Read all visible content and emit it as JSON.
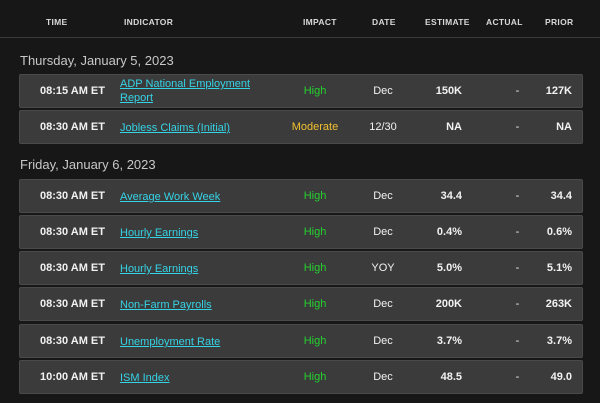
{
  "header": {
    "time": "TIME",
    "indicator": "INDICATOR",
    "impact": "IMPACT",
    "date": "DATE",
    "estimate": "ESTIMATE",
    "actual": "ACTUAL",
    "prior": "PRIOR"
  },
  "colors": {
    "high": "#25d12f",
    "moderate": "#f0c030",
    "link": "#35d3e6"
  },
  "days": [
    {
      "label": "Thursday, January 5, 2023",
      "rows": [
        {
          "time": "08:15 AM ET",
          "indicator": "ADP National Employment Report",
          "impact": "High",
          "date": "Dec",
          "estimate": "150K",
          "actual": "-",
          "prior": "127K"
        },
        {
          "time": "08:30 AM ET",
          "indicator": "Jobless Claims (Initial)",
          "impact": "Moderate",
          "date": "12/30",
          "estimate": "NA",
          "actual": "-",
          "prior": "NA"
        }
      ]
    },
    {
      "label": "Friday, January 6, 2023",
      "rows": [
        {
          "time": "08:30 AM ET",
          "indicator": "Average Work Week",
          "impact": "High",
          "date": "Dec",
          "estimate": "34.4",
          "actual": "-",
          "prior": "34.4"
        },
        {
          "time": "08:30 AM ET",
          "indicator": "Hourly Earnings",
          "impact": "High",
          "date": "Dec",
          "estimate": "0.4%",
          "actual": "-",
          "prior": "0.6%"
        },
        {
          "time": "08:30 AM ET",
          "indicator": "Hourly Earnings",
          "impact": "High",
          "date": "YOY",
          "estimate": "5.0%",
          "actual": "-",
          "prior": "5.1%"
        },
        {
          "time": "08:30 AM ET",
          "indicator": "Non-Farm Payrolls",
          "impact": "High",
          "date": "Dec",
          "estimate": "200K",
          "actual": "-",
          "prior": "263K"
        },
        {
          "time": "08:30 AM ET",
          "indicator": "Unemployment Rate",
          "impact": "High",
          "date": "Dec",
          "estimate": "3.7%",
          "actual": "-",
          "prior": "3.7%"
        },
        {
          "time": "10:00 AM ET",
          "indicator": "ISM Index",
          "impact": "High",
          "date": "Dec",
          "estimate": "48.5",
          "actual": "-",
          "prior": "49.0"
        }
      ]
    }
  ]
}
